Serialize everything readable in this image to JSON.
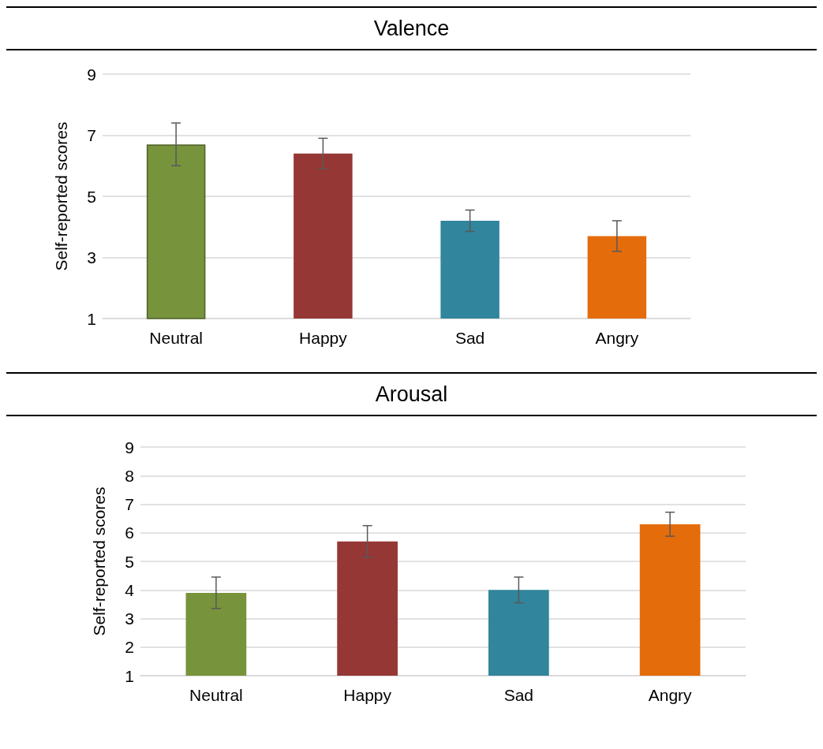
{
  "chart_data": [
    {
      "type": "bar",
      "title": "Valence",
      "ylabel": "Self-reported scores",
      "categories": [
        "Neutral",
        "Happy",
        "Sad",
        "Angry"
      ],
      "values": [
        6.7,
        6.4,
        4.2,
        3.7
      ],
      "errors": [
        0.7,
        0.5,
        0.35,
        0.5
      ],
      "colors": [
        "#77933c",
        "#953735",
        "#31859c",
        "#e46c0a"
      ],
      "ylim": [
        1,
        9
      ],
      "yticks": [
        1,
        3,
        5,
        7,
        9
      ],
      "grid": "y"
    },
    {
      "type": "bar",
      "title": "Arousal",
      "ylabel": "Self-reported scores",
      "categories": [
        "Neutral",
        "Happy",
        "Sad",
        "Angry"
      ],
      "values": [
        3.9,
        5.7,
        4.0,
        6.3
      ],
      "errors": [
        0.55,
        0.55,
        0.45,
        0.42
      ],
      "colors": [
        "#77933c",
        "#953735",
        "#31859c",
        "#e46c0a"
      ],
      "ylim": [
        1,
        9
      ],
      "yticks": [
        1,
        2,
        3,
        4,
        5,
        6,
        7,
        8,
        9
      ],
      "grid": "y"
    }
  ]
}
